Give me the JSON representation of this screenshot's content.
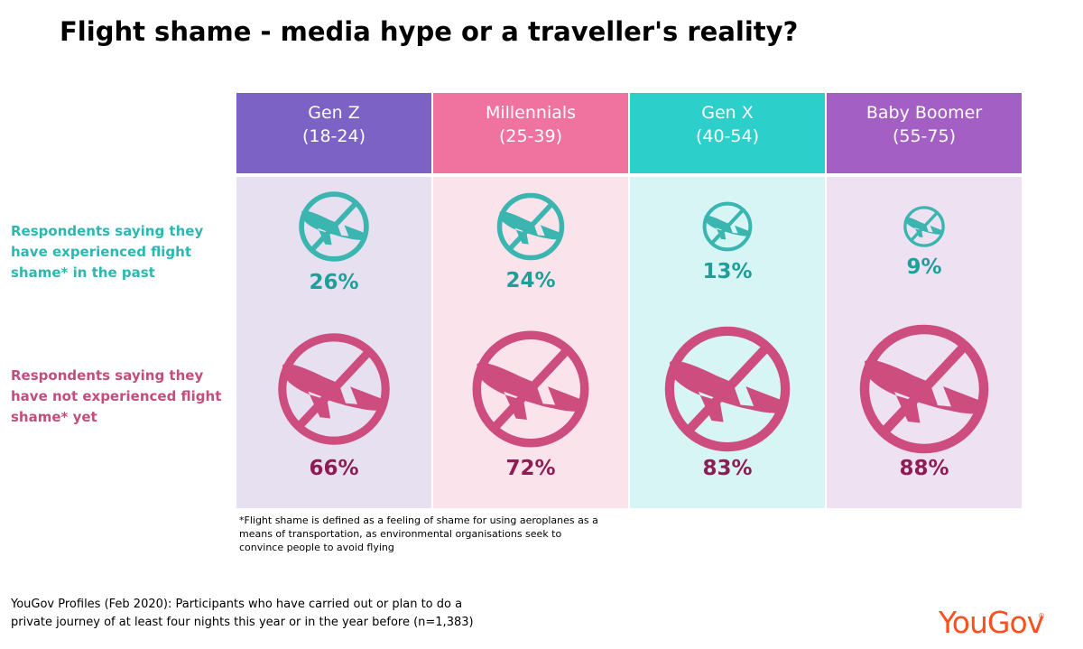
{
  "title": "Flight shame - media hype or a traveller's reality?",
  "row_labels": {
    "past": "Respondents saying they have experienced flight shame* in the past",
    "not_yet": "Respondents saying they have not experienced flight shame* yet"
  },
  "colors": {
    "header": [
      "#7b62c4",
      "#f0739f",
      "#2ccfca",
      "#a45fc4"
    ],
    "body": [
      "#e6e0f1",
      "#fbe3ec",
      "#d6f5f4",
      "#eee2f2"
    ],
    "past_icon": "#3bb5b0",
    "not_yet_icon": "#cd4d7f",
    "past_text": "#1f9f9a",
    "not_yet_text": "#8e1d55"
  },
  "chart_data": {
    "type": "table",
    "categories": [
      "Gen Z (18-24)",
      "Millennials (25-39)",
      "Gen X (40-54)",
      "Baby Boomer (55-75)"
    ],
    "headers": [
      {
        "name": "Gen Z",
        "range": "(18-24)"
      },
      {
        "name": "Millennials",
        "range": "(25-39)"
      },
      {
        "name": "Gen X",
        "range": "(40-54)"
      },
      {
        "name": "Baby Boomer",
        "range": "(55-75)"
      }
    ],
    "series": [
      {
        "name": "Respondents saying they have experienced flight shame* in the past",
        "values": [
          26,
          24,
          13,
          9
        ],
        "labels": [
          "26%",
          "24%",
          "13%",
          "9%"
        ]
      },
      {
        "name": "Respondents saying they have not experienced flight shame* yet",
        "values": [
          66,
          72,
          83,
          88
        ],
        "labels": [
          "66%",
          "72%",
          "83%",
          "88%"
        ]
      }
    ],
    "icon": "no-flying-icon"
  },
  "footnote": "*Flight shame is defined as a feeling of shame for using aeroplanes as a means of transportation, as environmental organisations seek to convince people to avoid flying",
  "source": "YouGov Profiles (Feb 2020): Participants who have carried out or plan to do a private journey of at least four nights this year or in the year before (n=1,383)",
  "logo": {
    "text": "YouGov",
    "mark": "®"
  }
}
